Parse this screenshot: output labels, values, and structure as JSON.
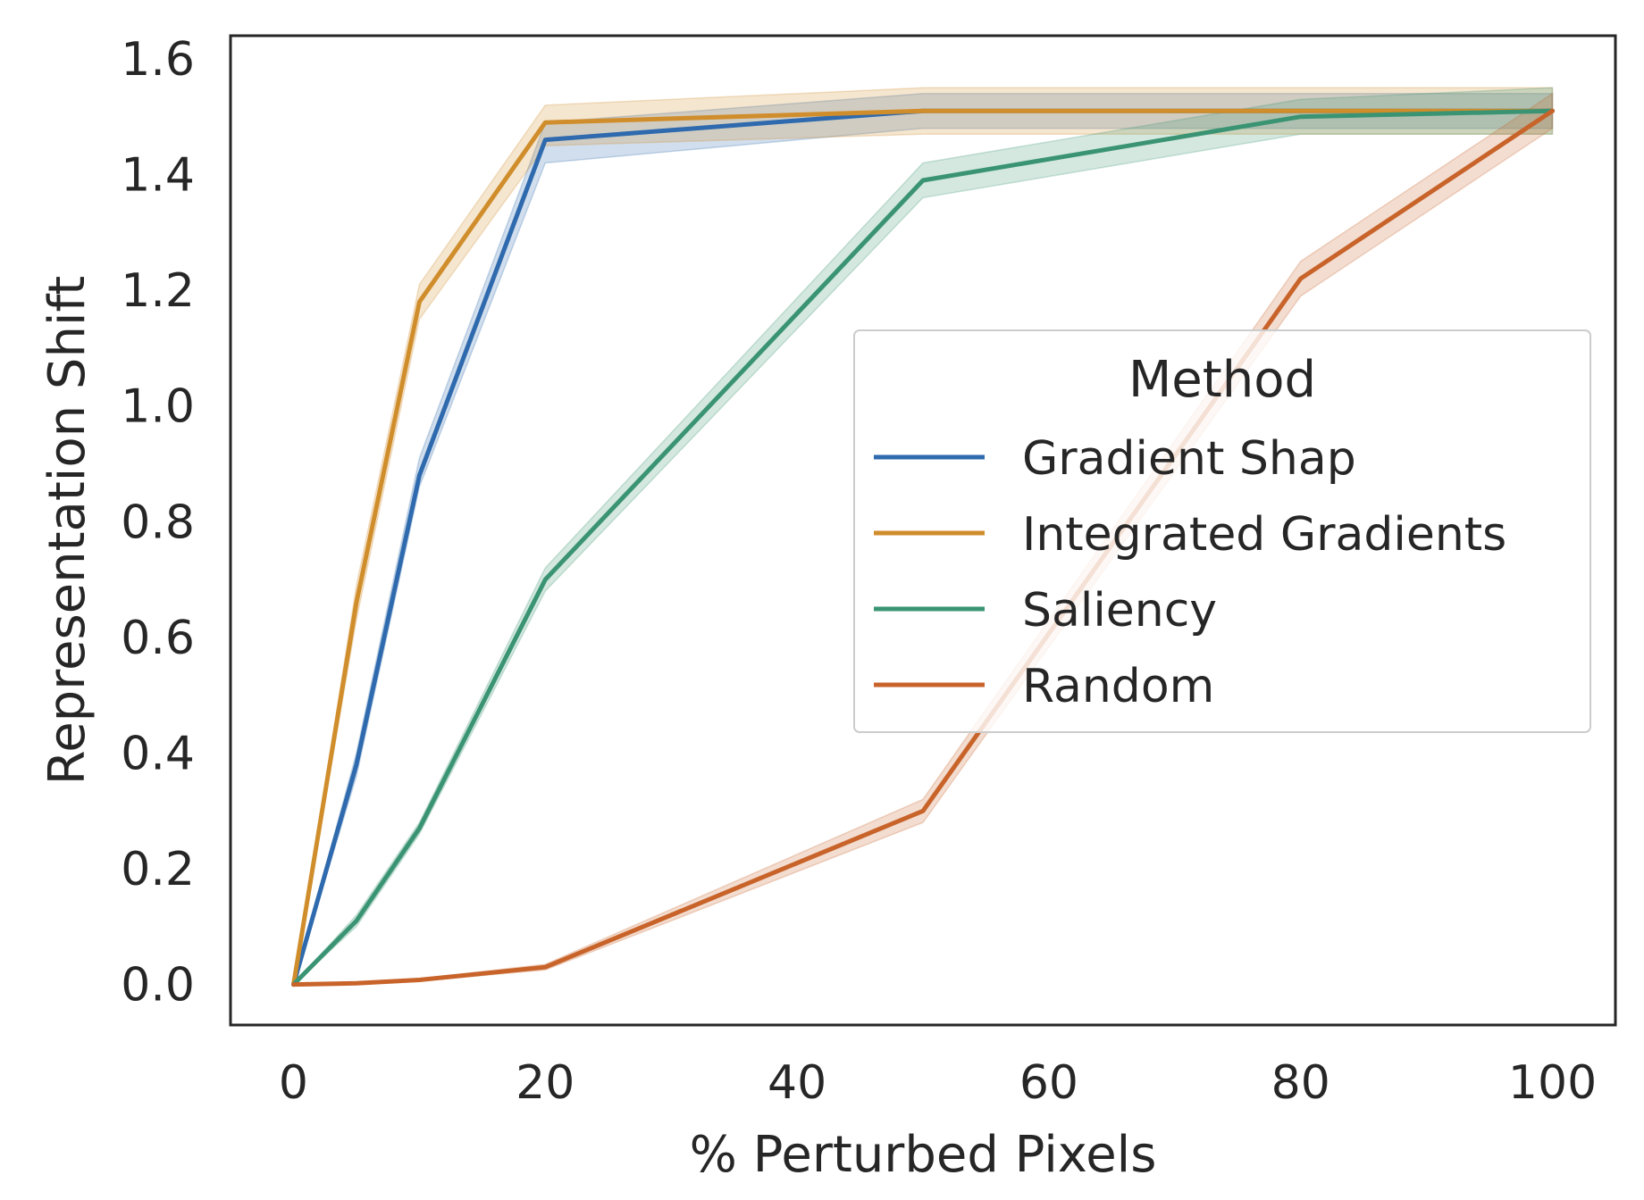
{
  "chart_data": {
    "type": "line",
    "title": "",
    "xlabel": "% Perturbed Pixels",
    "ylabel": "Representation Shift",
    "xlim": [
      -5,
      105
    ],
    "ylim": [
      -0.07,
      1.64
    ],
    "xticks": [
      0,
      20,
      40,
      60,
      80,
      100
    ],
    "xtick_labels": [
      "0",
      "20",
      "40",
      "60",
      "80",
      "100"
    ],
    "yticks": [
      0.0,
      0.2,
      0.4,
      0.6,
      0.8,
      1.0,
      1.2,
      1.4,
      1.6
    ],
    "ytick_labels": [
      "0.0",
      "0.2",
      "0.4",
      "0.6",
      "0.8",
      "1.0",
      "1.2",
      "1.4",
      "1.6"
    ],
    "grid": false,
    "legend": {
      "title": "Method",
      "placement": "center-right"
    },
    "x": [
      0,
      5,
      10,
      20,
      50,
      80,
      100
    ],
    "series": [
      {
        "name": "Gradient Shap",
        "color": "#2e6aad",
        "values": [
          0.0,
          0.38,
          0.88,
          1.46,
          1.51,
          1.51,
          1.51
        ],
        "lower": [
          0.0,
          0.36,
          0.86,
          1.42,
          1.48,
          1.48,
          1.48
        ],
        "upper": [
          0.0,
          0.4,
          0.91,
          1.49,
          1.54,
          1.54,
          1.54
        ]
      },
      {
        "name": "Integrated Gradients",
        "color": "#d08d2b",
        "values": [
          0.0,
          0.66,
          1.18,
          1.49,
          1.51,
          1.51,
          1.51
        ],
        "lower": [
          0.0,
          0.63,
          1.15,
          1.45,
          1.47,
          1.47,
          1.47
        ],
        "upper": [
          0.0,
          0.69,
          1.21,
          1.52,
          1.55,
          1.55,
          1.55
        ]
      },
      {
        "name": "Saliency",
        "color": "#3a9473",
        "values": [
          0.0,
          0.11,
          0.27,
          0.7,
          1.39,
          1.5,
          1.51
        ],
        "lower": [
          0.0,
          0.1,
          0.26,
          0.68,
          1.36,
          1.47,
          1.47
        ],
        "upper": [
          0.0,
          0.12,
          0.28,
          0.72,
          1.42,
          1.53,
          1.55
        ]
      },
      {
        "name": "Random",
        "color": "#c8632a",
        "values": [
          0.0,
          0.002,
          0.008,
          0.03,
          0.3,
          1.22,
          1.51
        ],
        "lower": [
          0.0,
          0.001,
          0.006,
          0.025,
          0.28,
          1.19,
          1.48
        ],
        "upper": [
          0.0,
          0.003,
          0.01,
          0.035,
          0.32,
          1.25,
          1.54
        ]
      }
    ]
  }
}
